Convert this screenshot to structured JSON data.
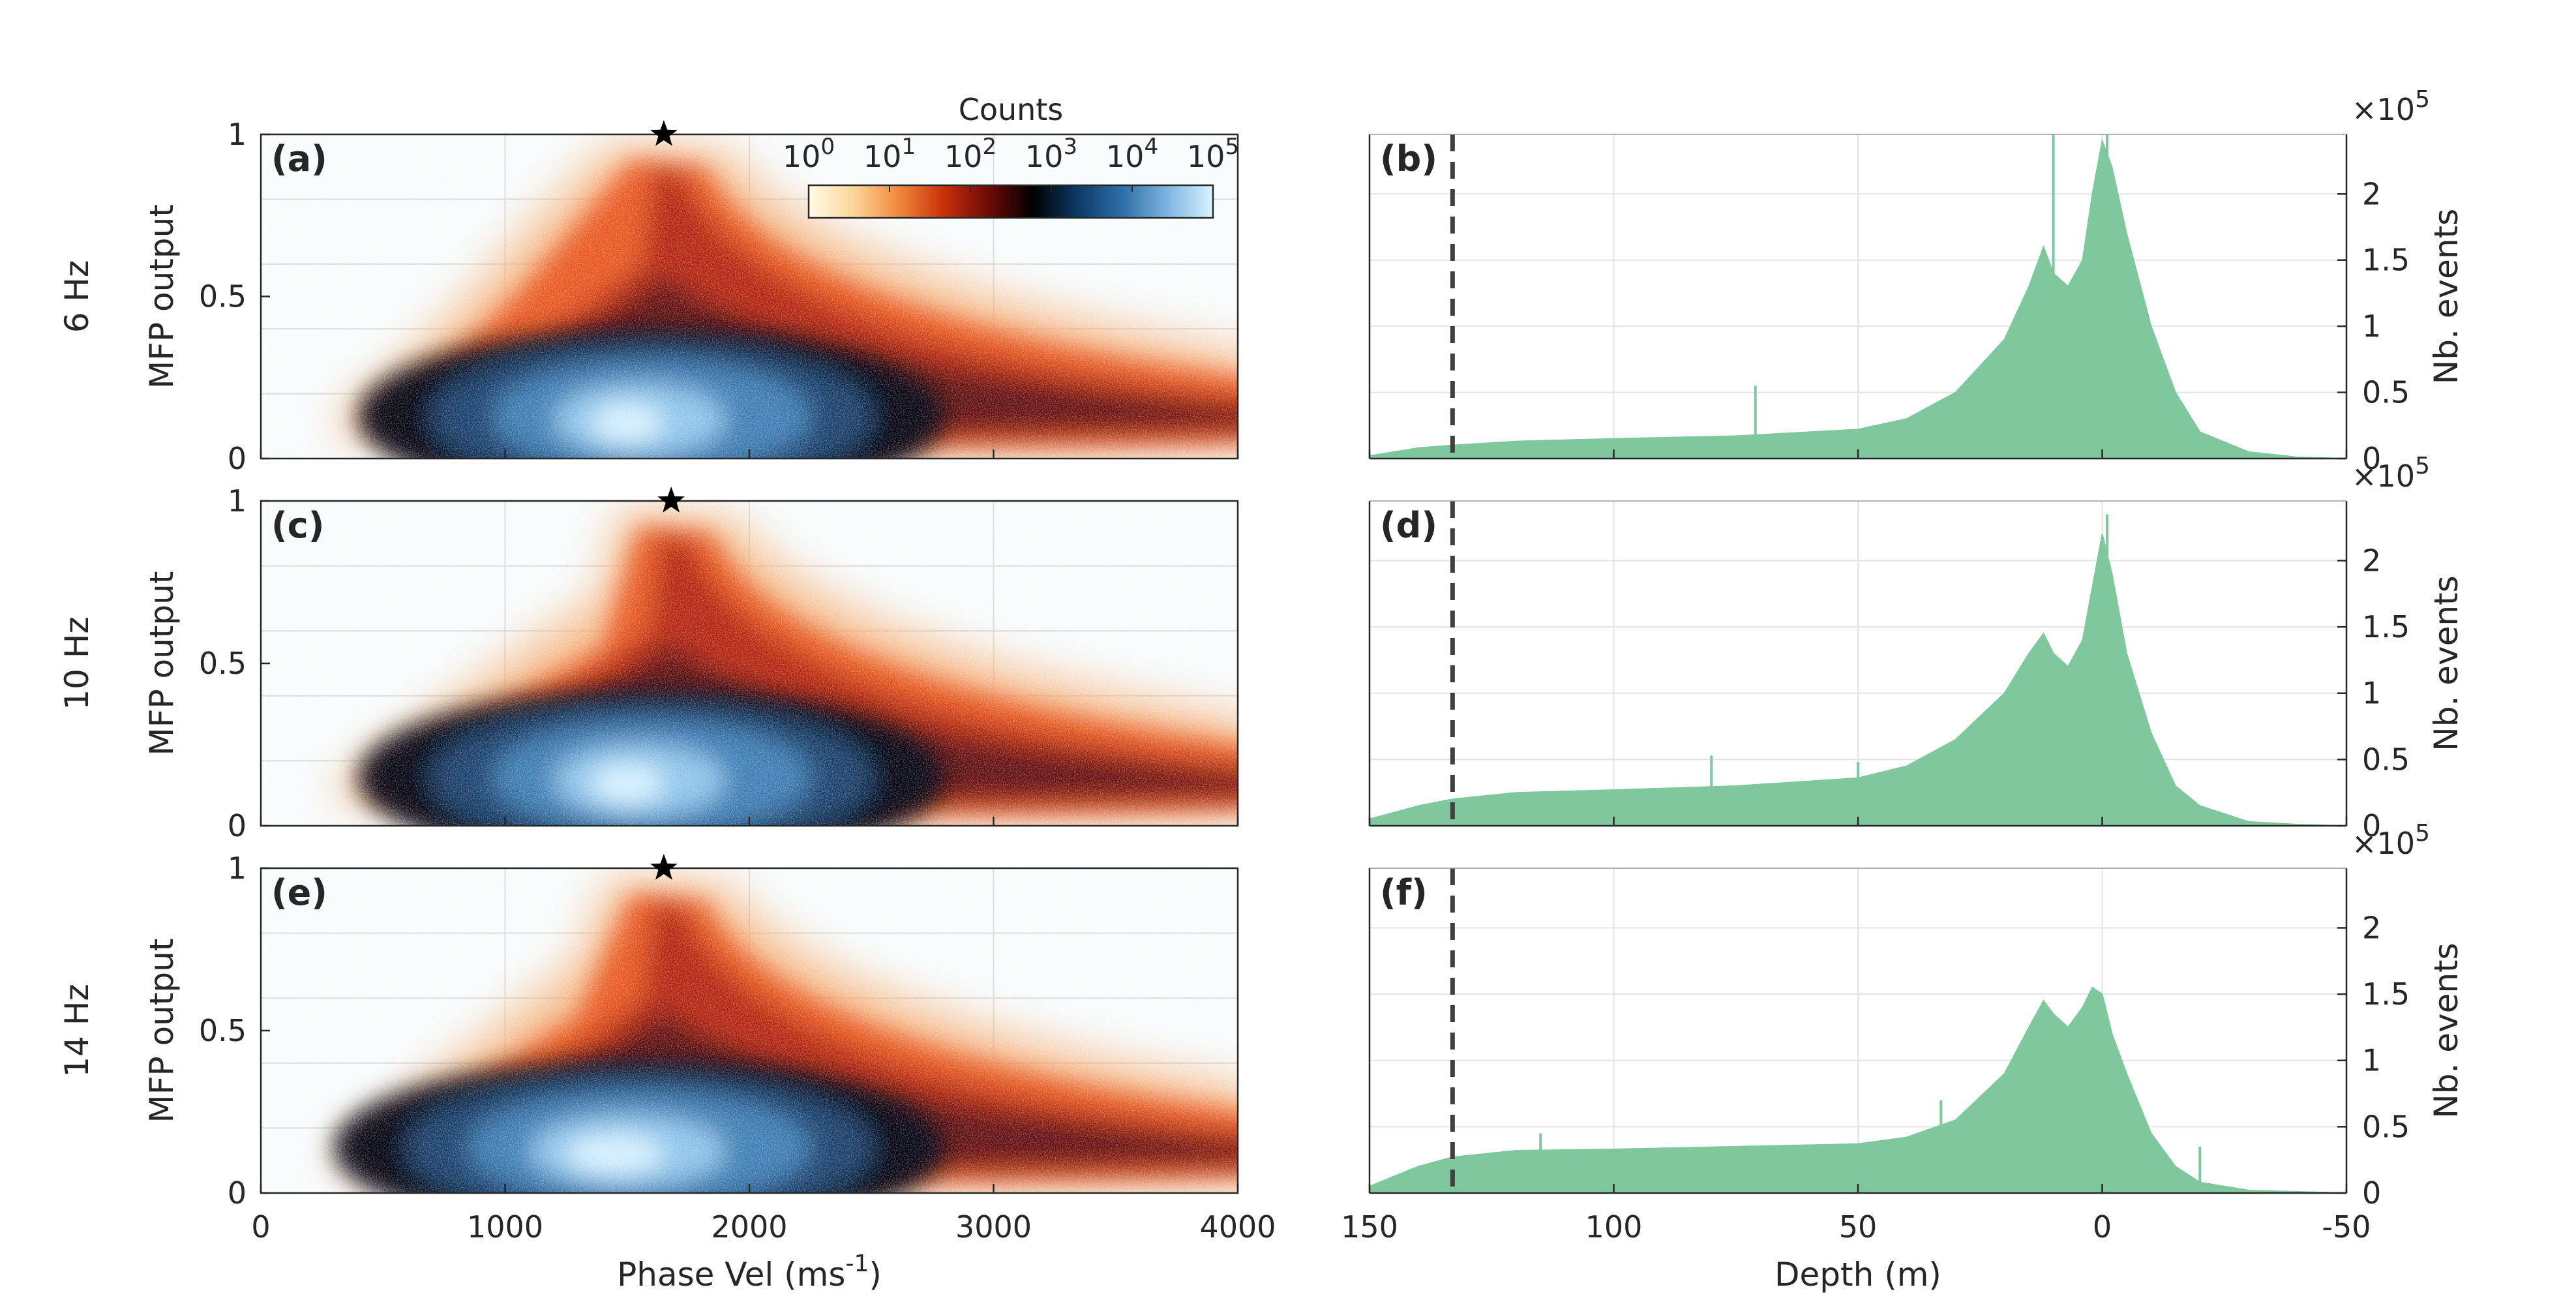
{
  "chart_data": [
    {
      "type": "heatmap",
      "panel_label": "(a)",
      "row_label": "6 Hz",
      "xlabel": "",
      "ylabel": "MFP output",
      "xlim": [
        0,
        4000
      ],
      "ylim": [
        0,
        1
      ],
      "x_ticks": [
        0,
        1000,
        2000,
        3000,
        4000
      ],
      "y_ticks": [
        "0",
        "0.5",
        "1"
      ],
      "peak_marker": {
        "x": 1650,
        "y": 1.0
      },
      "density": {
        "core": {
          "x": 1600,
          "y": 0.13
        },
        "spike_x": 1650,
        "side_lobe_x": 1100
      }
    },
    {
      "type": "bar",
      "panel_label": "(b)",
      "xlabel": "",
      "ylabel": "Nb. events",
      "y_exponent": "×10",
      "y_exponent_power": "5",
      "xlim": [
        150,
        -50
      ],
      "ylim": [
        0,
        2.45
      ],
      "x_ticks": [
        "150",
        "100",
        "50",
        "0",
        "-50"
      ],
      "y_ticks": [
        "0",
        "0.5",
        "1",
        "1.5",
        "2"
      ],
      "reference_line_depth": 133,
      "profile": [
        [
          150,
          0.02
        ],
        [
          140,
          0.08
        ],
        [
          133,
          0.1
        ],
        [
          120,
          0.13
        ],
        [
          100,
          0.15
        ],
        [
          75,
          0.17
        ],
        [
          50,
          0.22
        ],
        [
          40,
          0.3
        ],
        [
          30,
          0.5
        ],
        [
          20,
          0.9
        ],
        [
          15,
          1.3
        ],
        [
          12,
          1.6
        ],
        [
          10,
          1.4
        ],
        [
          7,
          1.3
        ],
        [
          4,
          1.5
        ],
        [
          2,
          2.0
        ],
        [
          0,
          2.4
        ],
        [
          -2,
          2.2
        ],
        [
          -5,
          1.7
        ],
        [
          -10,
          1.0
        ],
        [
          -15,
          0.5
        ],
        [
          -20,
          0.2
        ],
        [
          -30,
          0.05
        ],
        [
          -40,
          0.01
        ],
        [
          -50,
          0.0
        ]
      ],
      "spikes": [
        [
          71,
          0.55
        ],
        [
          10,
          2.45
        ],
        [
          -1,
          2.45
        ]
      ]
    },
    {
      "type": "heatmap",
      "panel_label": "(c)",
      "row_label": "10 Hz",
      "xlabel": "",
      "ylabel": "MFP output",
      "xlim": [
        0,
        4000
      ],
      "ylim": [
        0,
        1
      ],
      "x_ticks": [
        0,
        1000,
        2000,
        3000,
        4000
      ],
      "y_ticks": [
        "0",
        "0.5",
        "1"
      ],
      "peak_marker": {
        "x": 1680,
        "y": 1.0
      },
      "density": {
        "core": {
          "x": 1600,
          "y": 0.15
        },
        "spike_x": 1680,
        "side_lobe_x": 1400
      }
    },
    {
      "type": "bar",
      "panel_label": "(d)",
      "xlabel": "",
      "ylabel": "Nb. events",
      "y_exponent": "×10",
      "y_exponent_power": "5",
      "xlim": [
        150,
        -50
      ],
      "ylim": [
        0,
        2.45
      ],
      "x_ticks": [
        "150",
        "100",
        "50",
        "0",
        "-50"
      ],
      "y_ticks": [
        "0",
        "0.5",
        "1",
        "1.5",
        "2"
      ],
      "reference_line_depth": 133,
      "profile": [
        [
          150,
          0.05
        ],
        [
          140,
          0.15
        ],
        [
          133,
          0.2
        ],
        [
          120,
          0.25
        ],
        [
          100,
          0.27
        ],
        [
          75,
          0.3
        ],
        [
          50,
          0.36
        ],
        [
          40,
          0.45
        ],
        [
          30,
          0.65
        ],
        [
          20,
          1.0
        ],
        [
          15,
          1.3
        ],
        [
          12,
          1.45
        ],
        [
          10,
          1.3
        ],
        [
          7,
          1.2
        ],
        [
          4,
          1.4
        ],
        [
          2,
          1.8
        ],
        [
          0,
          2.2
        ],
        [
          -2,
          1.9
        ],
        [
          -5,
          1.3
        ],
        [
          -10,
          0.7
        ],
        [
          -15,
          0.3
        ],
        [
          -20,
          0.15
        ],
        [
          -30,
          0.03
        ],
        [
          -40,
          0.01
        ],
        [
          -50,
          0.0
        ]
      ],
      "spikes": [
        [
          80,
          0.53
        ],
        [
          50,
          0.48
        ],
        [
          -1,
          2.35
        ]
      ]
    },
    {
      "type": "heatmap",
      "panel_label": "(e)",
      "row_label": "14 Hz",
      "xlabel": "Phase Vel (ms",
      "xlabel_power": "-1",
      "xlabel_suffix": ")",
      "ylabel": "MFP output",
      "xlim": [
        0,
        4000
      ],
      "ylim": [
        0,
        1
      ],
      "x_ticks": [
        0,
        1000,
        2000,
        3000,
        4000
      ],
      "y_ticks": [
        "0",
        "0.5",
        "1"
      ],
      "peak_marker": {
        "x": 1650,
        "y": 1.0
      },
      "density": {
        "core": {
          "x": 1550,
          "y": 0.14
        },
        "spike_x": 1650,
        "side_lobe_x": 1300
      }
    },
    {
      "type": "bar",
      "panel_label": "(f)",
      "xlabel": "Depth (m)",
      "ylabel": "Nb. events",
      "y_exponent": "×10",
      "y_exponent_power": "5",
      "xlim": [
        150,
        -50
      ],
      "ylim": [
        0,
        2.45
      ],
      "x_ticks": [
        "150",
        "100",
        "50",
        "0",
        "-50"
      ],
      "y_ticks": [
        "0",
        "0.5",
        "1",
        "1.5",
        "2"
      ],
      "reference_line_depth": 133,
      "profile": [
        [
          150,
          0.05
        ],
        [
          140,
          0.2
        ],
        [
          133,
          0.27
        ],
        [
          120,
          0.32
        ],
        [
          100,
          0.33
        ],
        [
          75,
          0.35
        ],
        [
          50,
          0.37
        ],
        [
          40,
          0.42
        ],
        [
          30,
          0.55
        ],
        [
          20,
          0.9
        ],
        [
          15,
          1.25
        ],
        [
          12,
          1.45
        ],
        [
          10,
          1.35
        ],
        [
          7,
          1.25
        ],
        [
          4,
          1.4
        ],
        [
          2,
          1.55
        ],
        [
          0,
          1.5
        ],
        [
          -2,
          1.2
        ],
        [
          -5,
          0.9
        ],
        [
          -10,
          0.45
        ],
        [
          -15,
          0.2
        ],
        [
          -20,
          0.08
        ],
        [
          -30,
          0.02
        ],
        [
          -40,
          0.01
        ],
        [
          -50,
          0.0
        ]
      ],
      "spikes": [
        [
          115,
          0.45
        ],
        [
          33,
          0.7
        ],
        [
          -20,
          0.35
        ]
      ]
    }
  ],
  "colorbar": {
    "title": "Counts",
    "tick_base": "10",
    "tick_powers": [
      "0",
      "1",
      "2",
      "3",
      "4",
      "5"
    ],
    "colors": [
      "#fffbe6",
      "#fbd59a",
      "#f08a3c",
      "#c8300a",
      "#6e0a08",
      "#000000",
      "#0d3a66",
      "#2f70a8",
      "#7fb6e2",
      "#d8f4ff"
    ]
  },
  "colors": {
    "histogram_fill": "#7fc79c",
    "heatmap_background": "#f7fcfd",
    "reference_line": "#404040",
    "peak_marker": "#000000"
  }
}
